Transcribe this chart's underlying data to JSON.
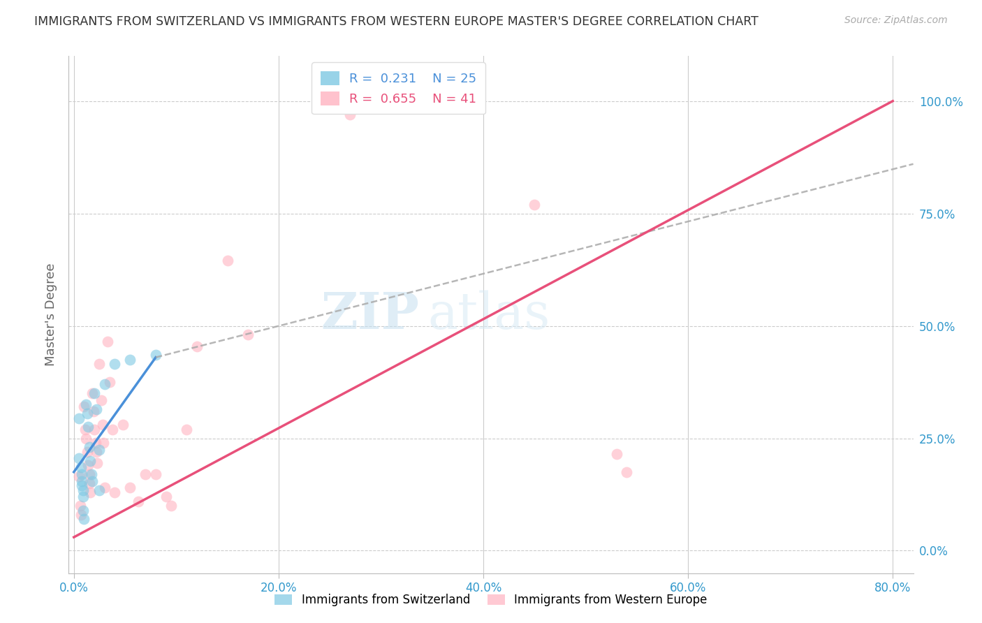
{
  "title": "IMMIGRANTS FROM SWITZERLAND VS IMMIGRANTS FROM WESTERN EUROPE MASTER'S DEGREE CORRELATION CHART",
  "source": "Source: ZipAtlas.com",
  "xlabel_blue": "Immigrants from Switzerland",
  "xlabel_pink": "Immigrants from Western Europe",
  "ylabel": "Master's Degree",
  "x_ticks": [
    "0.0%",
    "20.0%",
    "40.0%",
    "60.0%",
    "80.0%"
  ],
  "y_ticks": [
    "100.0%",
    "75.0%",
    "50.0%",
    "25.0%",
    "0.0%"
  ],
  "y_tick_vals": [
    1.0,
    0.75,
    0.5,
    0.25,
    0.0
  ],
  "xlim": [
    -0.005,
    0.82
  ],
  "ylim": [
    -0.05,
    1.1
  ],
  "legend_blue_r": "0.231",
  "legend_blue_n": "25",
  "legend_pink_r": "0.655",
  "legend_pink_n": "41",
  "blue_color": "#7ec8e3",
  "pink_color": "#ffb3c1",
  "blue_line_color": "#4a90d9",
  "pink_line_color": "#e8507a",
  "dash_line_color": "#aaaaaa",
  "watermark_zip": "ZIP",
  "watermark_atlas": "atlas",
  "blue_scatter": [
    [
      0.005,
      0.295
    ],
    [
      0.005,
      0.205
    ],
    [
      0.007,
      0.185
    ],
    [
      0.008,
      0.17
    ],
    [
      0.008,
      0.155
    ],
    [
      0.008,
      0.145
    ],
    [
      0.009,
      0.135
    ],
    [
      0.009,
      0.12
    ],
    [
      0.009,
      0.09
    ],
    [
      0.01,
      0.07
    ],
    [
      0.012,
      0.325
    ],
    [
      0.013,
      0.305
    ],
    [
      0.014,
      0.275
    ],
    [
      0.015,
      0.23
    ],
    [
      0.016,
      0.2
    ],
    [
      0.017,
      0.17
    ],
    [
      0.018,
      0.155
    ],
    [
      0.02,
      0.35
    ],
    [
      0.022,
      0.315
    ],
    [
      0.025,
      0.225
    ],
    [
      0.025,
      0.135
    ],
    [
      0.03,
      0.37
    ],
    [
      0.04,
      0.415
    ],
    [
      0.055,
      0.425
    ],
    [
      0.08,
      0.435
    ]
  ],
  "pink_scatter": [
    [
      0.005,
      0.165
    ],
    [
      0.006,
      0.1
    ],
    [
      0.007,
      0.08
    ],
    [
      0.01,
      0.32
    ],
    [
      0.011,
      0.27
    ],
    [
      0.012,
      0.25
    ],
    [
      0.013,
      0.22
    ],
    [
      0.014,
      0.19
    ],
    [
      0.015,
      0.17
    ],
    [
      0.015,
      0.15
    ],
    [
      0.016,
      0.13
    ],
    [
      0.018,
      0.35
    ],
    [
      0.019,
      0.31
    ],
    [
      0.02,
      0.27
    ],
    [
      0.021,
      0.24
    ],
    [
      0.022,
      0.22
    ],
    [
      0.023,
      0.195
    ],
    [
      0.025,
      0.415
    ],
    [
      0.027,
      0.335
    ],
    [
      0.028,
      0.28
    ],
    [
      0.029,
      0.24
    ],
    [
      0.03,
      0.14
    ],
    [
      0.033,
      0.465
    ],
    [
      0.035,
      0.375
    ],
    [
      0.038,
      0.27
    ],
    [
      0.04,
      0.13
    ],
    [
      0.048,
      0.28
    ],
    [
      0.055,
      0.14
    ],
    [
      0.063,
      0.11
    ],
    [
      0.07,
      0.17
    ],
    [
      0.08,
      0.17
    ],
    [
      0.09,
      0.12
    ],
    [
      0.095,
      0.1
    ],
    [
      0.11,
      0.27
    ],
    [
      0.12,
      0.455
    ],
    [
      0.15,
      0.645
    ],
    [
      0.17,
      0.48
    ],
    [
      0.27,
      0.97
    ],
    [
      0.45,
      0.77
    ],
    [
      0.53,
      0.215
    ],
    [
      0.54,
      0.175
    ]
  ],
  "blue_solid_line": [
    [
      0.0,
      0.175
    ],
    [
      0.08,
      0.43
    ]
  ],
  "blue_dash_line": [
    [
      0.08,
      0.43
    ],
    [
      0.82,
      0.86
    ]
  ],
  "pink_solid_line": [
    [
      0.0,
      0.03
    ],
    [
      0.8,
      1.0
    ]
  ]
}
